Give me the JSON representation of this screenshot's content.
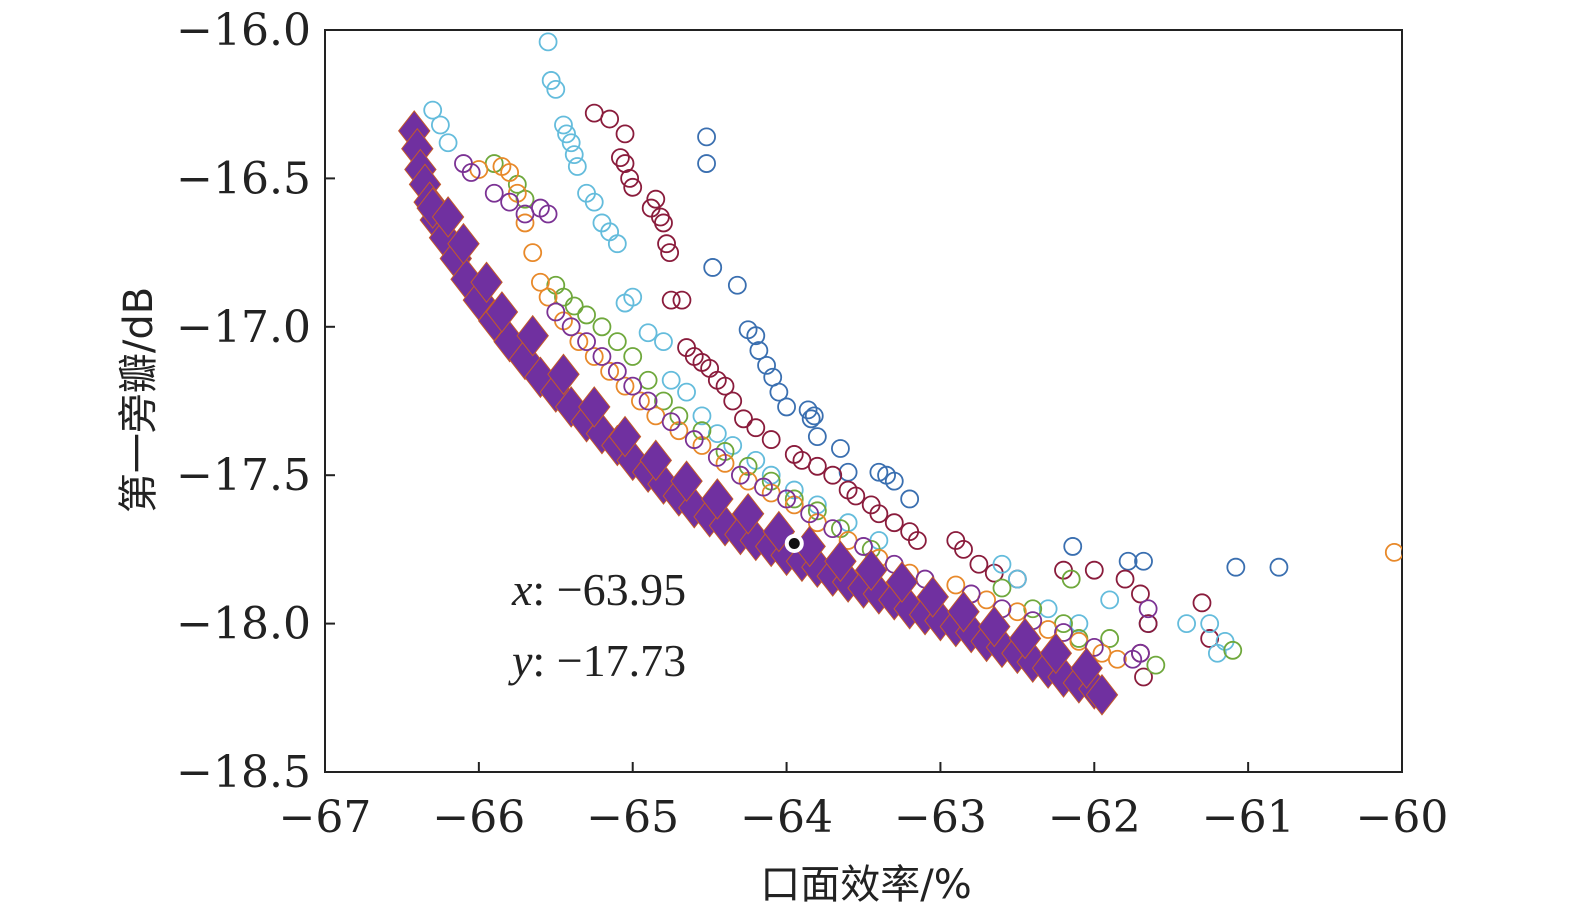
{
  "chart_data": {
    "type": "scatter",
    "title": "",
    "xlabel": "口面效率/%",
    "ylabel": "第一旁瓣/dB",
    "xlim": [
      -67,
      -60
    ],
    "ylim": [
      -18.5,
      -16.0
    ],
    "xticks": [
      -67,
      -66,
      -65,
      -64,
      -63,
      -62,
      -61,
      -60
    ],
    "yticks": [
      -16.0,
      -16.5,
      -17.0,
      -17.5,
      -18.0,
      -18.5
    ],
    "xtick_labels": [
      "−67",
      "−66",
      "−65",
      "−64",
      "−63",
      "−62",
      "−61",
      "−60"
    ],
    "ytick_labels": [
      "−16.0",
      "−16.5",
      "−17.0",
      "−17.5",
      "−18.0",
      "−18.5"
    ],
    "grid": false,
    "legend": "none",
    "series": [
      {
        "marker": "circle-open",
        "color": "#3a6fb0",
        "points": [
          [
            -64.52,
            -16.36
          ],
          [
            -64.52,
            -16.45
          ],
          [
            -64.48,
            -16.8
          ],
          [
            -64.32,
            -16.86
          ],
          [
            -64.25,
            -17.01
          ],
          [
            -64.2,
            -17.03
          ],
          [
            -64.18,
            -17.08
          ],
          [
            -64.13,
            -17.13
          ],
          [
            -64.09,
            -17.17
          ],
          [
            -64.05,
            -17.22
          ],
          [
            -64.0,
            -17.27
          ],
          [
            -63.86,
            -17.28
          ],
          [
            -63.84,
            -17.31
          ],
          [
            -63.82,
            -17.3
          ],
          [
            -63.8,
            -17.37
          ],
          [
            -63.65,
            -17.41
          ],
          [
            -63.6,
            -17.49
          ],
          [
            -63.4,
            -17.49
          ],
          [
            -63.35,
            -17.5
          ],
          [
            -63.3,
            -17.52
          ],
          [
            -63.2,
            -17.58
          ],
          [
            -62.14,
            -17.74
          ],
          [
            -61.78,
            -17.79
          ],
          [
            -61.68,
            -17.79
          ],
          [
            -61.08,
            -17.81
          ],
          [
            -60.8,
            -17.81
          ],
          [
            -61.65,
            -18.0
          ]
        ]
      },
      {
        "marker": "circle-open",
        "color": "#8a1c3c",
        "points": [
          [
            -65.25,
            -16.28
          ],
          [
            -65.15,
            -16.3
          ],
          [
            -65.05,
            -16.35
          ],
          [
            -65.08,
            -16.43
          ],
          [
            -65.05,
            -16.45
          ],
          [
            -65.02,
            -16.5
          ],
          [
            -65.0,
            -16.53
          ],
          [
            -64.85,
            -16.57
          ],
          [
            -64.88,
            -16.6
          ],
          [
            -64.82,
            -16.63
          ],
          [
            -64.8,
            -16.65
          ],
          [
            -64.78,
            -16.72
          ],
          [
            -64.76,
            -16.75
          ],
          [
            -64.75,
            -16.91
          ],
          [
            -64.68,
            -16.91
          ],
          [
            -64.65,
            -17.07
          ],
          [
            -64.6,
            -17.1
          ],
          [
            -64.55,
            -17.12
          ],
          [
            -64.5,
            -17.14
          ],
          [
            -64.45,
            -17.18
          ],
          [
            -64.4,
            -17.2
          ],
          [
            -64.35,
            -17.25
          ],
          [
            -64.28,
            -17.31
          ],
          [
            -64.2,
            -17.34
          ],
          [
            -64.1,
            -17.38
          ],
          [
            -63.95,
            -17.43
          ],
          [
            -63.9,
            -17.45
          ],
          [
            -63.8,
            -17.47
          ],
          [
            -63.7,
            -17.5
          ],
          [
            -63.6,
            -17.55
          ],
          [
            -63.55,
            -17.57
          ],
          [
            -63.45,
            -17.6
          ],
          [
            -63.4,
            -17.63
          ],
          [
            -63.3,
            -17.66
          ],
          [
            -63.2,
            -17.69
          ],
          [
            -63.15,
            -17.72
          ],
          [
            -62.9,
            -17.72
          ],
          [
            -62.85,
            -17.75
          ],
          [
            -62.75,
            -17.8
          ],
          [
            -62.65,
            -17.83
          ],
          [
            -62.5,
            -17.85
          ],
          [
            -62.2,
            -17.82
          ],
          [
            -62.0,
            -17.82
          ],
          [
            -61.8,
            -17.85
          ],
          [
            -61.7,
            -17.9
          ],
          [
            -61.65,
            -18.0
          ],
          [
            -61.3,
            -17.93
          ],
          [
            -61.25,
            -18.05
          ],
          [
            -61.7,
            -18.1
          ],
          [
            -61.68,
            -18.18
          ]
        ]
      },
      {
        "marker": "circle-open",
        "color": "#64bcdc",
        "points": [
          [
            -65.55,
            -16.04
          ],
          [
            -65.53,
            -16.17
          ],
          [
            -65.5,
            -16.2
          ],
          [
            -65.45,
            -16.32
          ],
          [
            -65.43,
            -16.35
          ],
          [
            -65.4,
            -16.38
          ],
          [
            -65.38,
            -16.42
          ],
          [
            -65.36,
            -16.46
          ],
          [
            -65.3,
            -16.55
          ],
          [
            -65.25,
            -16.58
          ],
          [
            -65.2,
            -16.65
          ],
          [
            -65.15,
            -16.68
          ],
          [
            -65.1,
            -16.72
          ],
          [
            -65.0,
            -16.9
          ],
          [
            -65.05,
            -16.92
          ],
          [
            -64.9,
            -17.02
          ],
          [
            -64.8,
            -17.05
          ],
          [
            -64.75,
            -17.18
          ],
          [
            -64.65,
            -17.22
          ],
          [
            -64.55,
            -17.3
          ],
          [
            -64.45,
            -17.36
          ],
          [
            -64.35,
            -17.4
          ],
          [
            -64.2,
            -17.45
          ],
          [
            -64.1,
            -17.5
          ],
          [
            -63.95,
            -17.55
          ],
          [
            -63.8,
            -17.6
          ],
          [
            -63.6,
            -17.66
          ],
          [
            -63.4,
            -17.72
          ],
          [
            -62.6,
            -17.8
          ],
          [
            -62.5,
            -17.85
          ],
          [
            -62.3,
            -17.95
          ],
          [
            -62.1,
            -18.0
          ],
          [
            -61.9,
            -17.92
          ],
          [
            -61.4,
            -18.0
          ],
          [
            -61.25,
            -18.0
          ],
          [
            -61.15,
            -18.06
          ],
          [
            -61.2,
            -18.1
          ],
          [
            -66.3,
            -16.27
          ],
          [
            -66.25,
            -16.32
          ],
          [
            -66.2,
            -16.38
          ]
        ]
      },
      {
        "marker": "circle-open",
        "color": "#6fa83c",
        "points": [
          [
            -65.9,
            -16.45
          ],
          [
            -65.75,
            -16.52
          ],
          [
            -65.7,
            -16.57
          ],
          [
            -65.5,
            -16.86
          ],
          [
            -65.45,
            -16.9
          ],
          [
            -65.38,
            -16.93
          ],
          [
            -65.3,
            -16.96
          ],
          [
            -65.2,
            -17.0
          ],
          [
            -65.1,
            -17.05
          ],
          [
            -65.0,
            -17.1
          ],
          [
            -64.9,
            -17.18
          ],
          [
            -64.8,
            -17.25
          ],
          [
            -64.7,
            -17.3
          ],
          [
            -64.55,
            -17.35
          ],
          [
            -64.4,
            -17.42
          ],
          [
            -64.25,
            -17.47
          ],
          [
            -64.1,
            -17.52
          ],
          [
            -63.95,
            -17.58
          ],
          [
            -63.8,
            -17.62
          ],
          [
            -63.65,
            -17.68
          ],
          [
            -63.45,
            -17.75
          ],
          [
            -62.6,
            -17.88
          ],
          [
            -62.4,
            -17.95
          ],
          [
            -62.2,
            -18.0
          ],
          [
            -62.1,
            -18.05
          ],
          [
            -61.9,
            -18.05
          ],
          [
            -61.6,
            -18.14
          ],
          [
            -61.1,
            -18.09
          ],
          [
            -62.15,
            -17.85
          ]
        ]
      },
      {
        "marker": "circle-open",
        "color": "#e8892a",
        "points": [
          [
            -66.0,
            -16.47
          ],
          [
            -65.85,
            -16.46
          ],
          [
            -65.8,
            -16.48
          ],
          [
            -65.75,
            -16.55
          ],
          [
            -65.7,
            -16.65
          ],
          [
            -65.65,
            -16.75
          ],
          [
            -65.6,
            -16.85
          ],
          [
            -65.55,
            -16.9
          ],
          [
            -65.45,
            -16.98
          ],
          [
            -65.35,
            -17.05
          ],
          [
            -65.25,
            -17.1
          ],
          [
            -65.15,
            -17.15
          ],
          [
            -65.05,
            -17.2
          ],
          [
            -64.95,
            -17.25
          ],
          [
            -64.85,
            -17.3
          ],
          [
            -64.7,
            -17.35
          ],
          [
            -64.55,
            -17.4
          ],
          [
            -64.4,
            -17.46
          ],
          [
            -64.25,
            -17.52
          ],
          [
            -64.1,
            -17.56
          ],
          [
            -63.95,
            -17.6
          ],
          [
            -63.8,
            -17.66
          ],
          [
            -63.6,
            -17.72
          ],
          [
            -63.4,
            -17.78
          ],
          [
            -63.2,
            -17.83
          ],
          [
            -62.9,
            -17.87
          ],
          [
            -62.7,
            -17.92
          ],
          [
            -62.5,
            -17.96
          ],
          [
            -62.3,
            -18.02
          ],
          [
            -62.1,
            -18.06
          ],
          [
            -61.95,
            -18.1
          ],
          [
            -61.85,
            -18.12
          ],
          [
            -60.05,
            -17.76
          ]
        ]
      },
      {
        "marker": "circle-open",
        "color": "#7b3294",
        "points": [
          [
            -66.1,
            -16.45
          ],
          [
            -66.05,
            -16.48
          ],
          [
            -65.9,
            -16.55
          ],
          [
            -65.8,
            -16.58
          ],
          [
            -65.7,
            -16.62
          ],
          [
            -65.6,
            -16.6
          ],
          [
            -65.55,
            -16.62
          ],
          [
            -65.5,
            -16.95
          ],
          [
            -65.4,
            -17.0
          ],
          [
            -65.3,
            -17.05
          ],
          [
            -65.2,
            -17.1
          ],
          [
            -65.1,
            -17.15
          ],
          [
            -65.0,
            -17.2
          ],
          [
            -64.9,
            -17.25
          ],
          [
            -64.75,
            -17.32
          ],
          [
            -64.6,
            -17.38
          ],
          [
            -64.45,
            -17.44
          ],
          [
            -64.3,
            -17.5
          ],
          [
            -64.15,
            -17.54
          ],
          [
            -64.0,
            -17.58
          ],
          [
            -63.85,
            -17.63
          ],
          [
            -63.7,
            -17.68
          ],
          [
            -63.5,
            -17.74
          ],
          [
            -63.3,
            -17.8
          ],
          [
            -63.1,
            -17.85
          ],
          [
            -62.8,
            -17.9
          ],
          [
            -62.6,
            -17.95
          ],
          [
            -62.4,
            -17.99
          ],
          [
            -62.2,
            -18.03
          ],
          [
            -62.0,
            -18.08
          ],
          [
            -61.75,
            -18.12
          ],
          [
            -61.65,
            -17.95
          ],
          [
            -61.7,
            -18.1
          ]
        ]
      },
      {
        "marker": "diamond-filled",
        "color": "#7030a0",
        "points": [
          [
            -66.42,
            -16.34
          ],
          [
            -66.4,
            -16.4
          ],
          [
            -66.38,
            -16.47
          ],
          [
            -66.35,
            -16.52
          ],
          [
            -66.32,
            -16.58
          ],
          [
            -66.28,
            -16.64
          ],
          [
            -66.22,
            -16.7
          ],
          [
            -66.15,
            -16.77
          ],
          [
            -66.08,
            -16.84
          ],
          [
            -66.0,
            -16.91
          ],
          [
            -65.9,
            -16.98
          ],
          [
            -65.8,
            -17.05
          ],
          [
            -65.7,
            -17.11
          ],
          [
            -65.6,
            -17.17
          ],
          [
            -65.5,
            -17.22
          ],
          [
            -65.4,
            -17.27
          ],
          [
            -65.3,
            -17.32
          ],
          [
            -65.2,
            -17.36
          ],
          [
            -65.1,
            -17.4
          ],
          [
            -65.0,
            -17.45
          ],
          [
            -64.9,
            -17.49
          ],
          [
            -64.8,
            -17.53
          ],
          [
            -64.7,
            -17.57
          ],
          [
            -64.6,
            -17.61
          ],
          [
            -64.5,
            -17.64
          ],
          [
            -64.4,
            -17.67
          ],
          [
            -64.3,
            -17.7
          ],
          [
            -64.2,
            -17.72
          ],
          [
            -64.1,
            -17.74
          ],
          [
            -64.0,
            -17.77
          ],
          [
            -63.9,
            -17.79
          ],
          [
            -63.8,
            -17.81
          ],
          [
            -63.7,
            -17.84
          ],
          [
            -63.6,
            -17.86
          ],
          [
            -63.5,
            -17.88
          ],
          [
            -63.4,
            -17.9
          ],
          [
            -63.3,
            -17.92
          ],
          [
            -63.2,
            -17.95
          ],
          [
            -63.1,
            -17.97
          ],
          [
            -63.0,
            -17.99
          ],
          [
            -62.9,
            -18.01
          ],
          [
            -62.8,
            -18.03
          ],
          [
            -62.7,
            -18.06
          ],
          [
            -62.6,
            -18.08
          ],
          [
            -62.5,
            -18.1
          ],
          [
            -62.4,
            -18.13
          ],
          [
            -62.3,
            -18.15
          ],
          [
            -62.2,
            -18.18
          ],
          [
            -62.1,
            -18.2
          ],
          [
            -62.0,
            -18.22
          ],
          [
            -61.95,
            -18.24
          ],
          [
            -66.3,
            -16.6
          ],
          [
            -66.2,
            -16.63
          ],
          [
            -66.1,
            -16.72
          ],
          [
            -65.95,
            -16.85
          ],
          [
            -65.85,
            -16.95
          ],
          [
            -65.65,
            -17.03
          ],
          [
            -65.45,
            -17.16
          ],
          [
            -65.25,
            -17.27
          ],
          [
            -65.05,
            -17.37
          ],
          [
            -64.85,
            -17.45
          ],
          [
            -64.65,
            -17.52
          ],
          [
            -64.45,
            -17.58
          ],
          [
            -64.25,
            -17.63
          ],
          [
            -64.05,
            -17.69
          ],
          [
            -63.85,
            -17.74
          ],
          [
            -63.65,
            -17.79
          ],
          [
            -63.45,
            -17.82
          ],
          [
            -63.25,
            -17.86
          ],
          [
            -63.05,
            -17.91
          ],
          [
            -62.85,
            -17.96
          ],
          [
            -62.65,
            -18.01
          ],
          [
            -62.45,
            -18.05
          ],
          [
            -62.25,
            -18.1
          ],
          [
            -62.05,
            -18.15
          ]
        ]
      }
    ],
    "highlight_point": {
      "x": -63.95,
      "y": -17.73
    },
    "annotation": {
      "x_prefix": "x",
      "x_value": ": −63.95",
      "y_prefix": "y",
      "y_value": ": −17.73"
    }
  }
}
